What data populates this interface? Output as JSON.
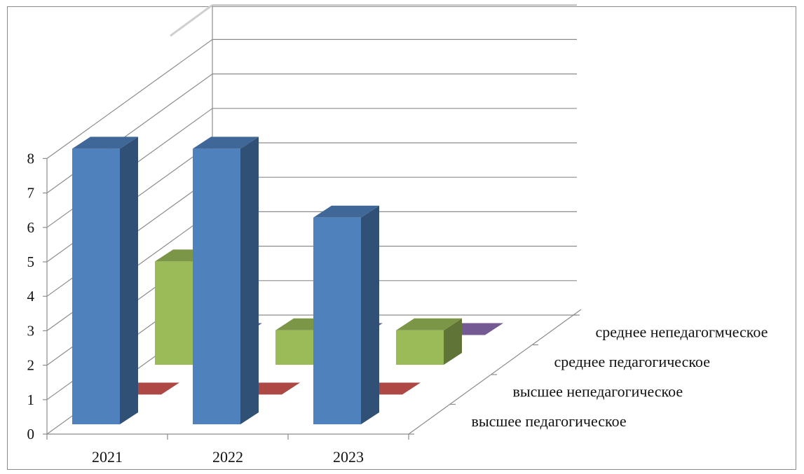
{
  "chart_data": {
    "type": "bar",
    "title": "",
    "xlabel": "",
    "ylabel": "",
    "ylim": [
      0,
      8
    ],
    "y_ticks": [
      "0",
      "1",
      "2",
      "3",
      "4",
      "5",
      "6",
      "7",
      "8"
    ],
    "categories": [
      "2021",
      "2022",
      "2023"
    ],
    "grid": true,
    "legend": "depth-axis labels (right)",
    "series": [
      {
        "name": "высшее педагогическое",
        "values": [
          8,
          8,
          6
        ],
        "color": "#4f81bd"
      },
      {
        "name": "высшее непедагогическое",
        "values": [
          0,
          0,
          0
        ],
        "color": "#c0504d"
      },
      {
        "name": "среднее педагогическое",
        "values": [
          3,
          1,
          1
        ],
        "color": "#9bbb59"
      },
      {
        "name": "среднее непедагогмческое",
        "values": [
          0,
          0,
          0
        ],
        "color": "#8064a2"
      }
    ]
  }
}
